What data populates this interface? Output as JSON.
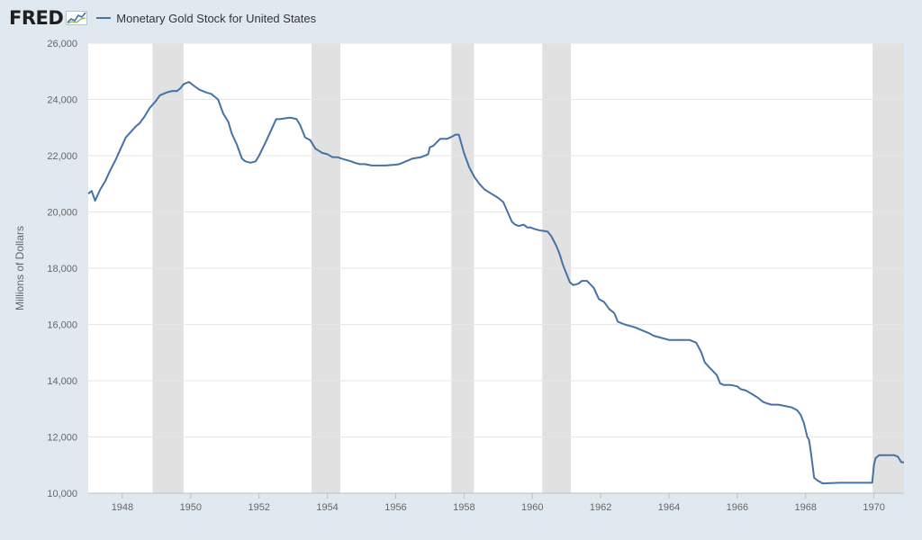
{
  "header": {
    "logo_text": "FRED",
    "legend_label": "Monetary Gold Stock for United States",
    "series_color": "#4572a7"
  },
  "chart_data": {
    "type": "line",
    "title": "",
    "xlabel": "",
    "ylabel": "Millions of Dollars",
    "xlim": [
      1947.0,
      1970.88
    ],
    "ylim": [
      10000,
      26000
    ],
    "x_ticks": [
      1948,
      1950,
      1952,
      1954,
      1956,
      1958,
      1960,
      1962,
      1964,
      1966,
      1968,
      1970
    ],
    "y_ticks": [
      10000,
      12000,
      14000,
      16000,
      18000,
      20000,
      22000,
      24000,
      26000
    ],
    "y_tick_labels": [
      "10,000",
      "12,000",
      "14,000",
      "16,000",
      "18,000",
      "20,000",
      "22,000",
      "24,000",
      "26,000"
    ],
    "grid": "horizontal",
    "recessions": [
      [
        1948.88,
        1949.79
      ],
      [
        1953.54,
        1954.38
      ],
      [
        1957.63,
        1958.29
      ],
      [
        1960.29,
        1961.13
      ],
      [
        1969.96,
        1970.88
      ]
    ],
    "series": [
      {
        "name": "Monetary Gold Stock for United States",
        "color": "#4572a7",
        "x": [
          1947.0,
          1947.1,
          1947.2,
          1947.35,
          1947.5,
          1947.65,
          1947.8,
          1947.95,
          1948.1,
          1948.25,
          1948.4,
          1948.5,
          1948.65,
          1948.8,
          1948.95,
          1949.1,
          1949.3,
          1949.45,
          1949.6,
          1949.7,
          1949.8,
          1949.95,
          1950.1,
          1950.25,
          1950.45,
          1950.6,
          1950.8,
          1950.95,
          1951.1,
          1951.2,
          1951.35,
          1951.5,
          1951.6,
          1951.75,
          1951.9,
          1952.0,
          1952.2,
          1952.5,
          1952.6,
          1952.9,
          1953.0,
          1953.1,
          1953.2,
          1953.35,
          1953.5,
          1953.65,
          1953.85,
          1954.0,
          1954.15,
          1954.3,
          1954.4,
          1954.55,
          1954.7,
          1954.8,
          1954.95,
          1955.1,
          1955.3,
          1955.5,
          1955.7,
          1956.0,
          1956.1,
          1956.3,
          1956.5,
          1956.75,
          1956.95,
          1957.0,
          1957.1,
          1957.3,
          1957.4,
          1957.5,
          1957.6,
          1957.75,
          1957.85,
          1958.0,
          1958.15,
          1958.3,
          1958.45,
          1958.6,
          1958.8,
          1959.0,
          1959.15,
          1959.4,
          1959.5,
          1959.6,
          1959.75,
          1959.85,
          1959.95,
          1960.05,
          1960.2,
          1960.45,
          1960.55,
          1960.7,
          1960.8,
          1960.9,
          1961.0,
          1961.1,
          1961.2,
          1961.35,
          1961.45,
          1961.6,
          1961.8,
          1961.95,
          1962.1,
          1962.25,
          1962.4,
          1962.5,
          1962.7,
          1962.85,
          1963.0,
          1963.2,
          1963.4,
          1963.55,
          1963.7,
          1963.85,
          1964.0,
          1964.2,
          1964.4,
          1964.6,
          1964.8,
          1964.95,
          1965.05,
          1965.2,
          1965.4,
          1965.5,
          1965.6,
          1965.8,
          1966.0,
          1966.1,
          1966.25,
          1966.4,
          1966.6,
          1966.75,
          1966.85,
          1967.0,
          1967.2,
          1967.4,
          1967.6,
          1967.75,
          1967.85,
          1967.95,
          1968.05,
          1968.1,
          1968.15,
          1968.25,
          1968.35,
          1968.5,
          1969.0,
          1969.5,
          1969.95,
          1970.0,
          1970.05,
          1970.15,
          1970.3,
          1970.45,
          1970.6,
          1970.7,
          1970.8,
          1970.88
        ],
        "y": [
          20650,
          20750,
          20400,
          20800,
          21100,
          21500,
          21850,
          22250,
          22650,
          22850,
          23050,
          23150,
          23400,
          23700,
          23900,
          24150,
          24250,
          24300,
          24300,
          24400,
          24550,
          24620,
          24480,
          24350,
          24250,
          24200,
          24000,
          23500,
          23200,
          22800,
          22400,
          21900,
          21800,
          21750,
          21800,
          22000,
          22500,
          23300,
          23300,
          23350,
          23330,
          23300,
          23100,
          22650,
          22550,
          22250,
          22100,
          22050,
          21950,
          21950,
          21900,
          21850,
          21800,
          21750,
          21700,
          21700,
          21650,
          21650,
          21650,
          21680,
          21700,
          21800,
          21900,
          21950,
          22050,
          22300,
          22350,
          22600,
          22600,
          22600,
          22650,
          22750,
          22750,
          22100,
          21600,
          21250,
          21000,
          20800,
          20650,
          20500,
          20350,
          19650,
          19550,
          19500,
          19550,
          19450,
          19450,
          19400,
          19350,
          19300,
          19150,
          18800,
          18500,
          18100,
          17800,
          17500,
          17400,
          17450,
          17550,
          17550,
          17300,
          16900,
          16800,
          16550,
          16400,
          16100,
          16000,
          15950,
          15900,
          15800,
          15700,
          15600,
          15550,
          15500,
          15450,
          15450,
          15450,
          15450,
          15350,
          15000,
          14650,
          14450,
          14200,
          13900,
          13850,
          13850,
          13800,
          13700,
          13650,
          13550,
          13400,
          13250,
          13200,
          13150,
          13150,
          13100,
          13050,
          12950,
          12800,
          12500,
          12000,
          11900,
          11500,
          10550,
          10450,
          10350,
          10370,
          10370,
          10370,
          11000,
          11250,
          11350,
          11350,
          11350,
          11350,
          11300,
          11100,
          11100
        ]
      }
    ]
  }
}
